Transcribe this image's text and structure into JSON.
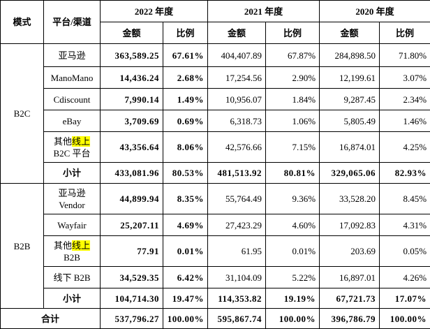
{
  "header": {
    "mode": "模式",
    "platform": "平台/渠道",
    "years": [
      "2022 年度",
      "2021 年度",
      "2020 年度"
    ],
    "subheaders": [
      "金额",
      "比例",
      "金额",
      "比例",
      "金额",
      "比例"
    ]
  },
  "groups": [
    {
      "mode": "B2C",
      "rows": [
        {
          "platform": [
            [
              {
                "text": "亚马逊"
              }
            ]
          ],
          "values": [
            "363,589.25",
            "67.61%",
            "404,407.89",
            "67.87%",
            "284,898.50",
            "71.80%"
          ]
        },
        {
          "platform": [
            [
              {
                "text": "ManoMano"
              }
            ]
          ],
          "values": [
            "14,436.24",
            "2.68%",
            "17,254.56",
            "2.90%",
            "12,199.61",
            "3.07%"
          ]
        },
        {
          "platform": [
            [
              {
                "text": "Cdiscount"
              }
            ]
          ],
          "values": [
            "7,990.14",
            "1.49%",
            "10,956.07",
            "1.84%",
            "9,287.45",
            "2.34%"
          ]
        },
        {
          "platform": [
            [
              {
                "text": "eBay"
              }
            ]
          ],
          "values": [
            "3,709.69",
            "0.69%",
            "6,318.73",
            "1.06%",
            "5,805.49",
            "1.46%"
          ]
        },
        {
          "platform": [
            [
              {
                "text": "其他"
              },
              {
                "text": "线上",
                "highlight": true
              }
            ],
            [
              {
                "text": "B2C 平台"
              }
            ]
          ],
          "values": [
            "43,356.64",
            "8.06%",
            "42,576.66",
            "7.15%",
            "16,874.01",
            "4.25%"
          ]
        },
        {
          "platform": [
            [
              {
                "text": "小计"
              }
            ]
          ],
          "subtotal": true,
          "values": [
            "433,081.96",
            "80.53%",
            "481,513.92",
            "80.81%",
            "329,065.06",
            "82.93%"
          ]
        }
      ]
    },
    {
      "mode": "B2B",
      "rows": [
        {
          "platform": [
            [
              {
                "text": "亚马逊"
              }
            ],
            [
              {
                "text": "Vendor"
              }
            ]
          ],
          "values": [
            "44,899.94",
            "8.35%",
            "55,764.49",
            "9.36%",
            "33,528.20",
            "8.45%"
          ]
        },
        {
          "platform": [
            [
              {
                "text": "Wayfair"
              }
            ]
          ],
          "values": [
            "25,207.11",
            "4.69%",
            "27,423.29",
            "4.60%",
            "17,092.83",
            "4.31%"
          ]
        },
        {
          "platform": [
            [
              {
                "text": "其他"
              },
              {
                "text": "线上",
                "highlight": true
              }
            ],
            [
              {
                "text": "B2B"
              }
            ]
          ],
          "values": [
            "77.91",
            "0.01%",
            "61.95",
            "0.01%",
            "203.69",
            "0.05%"
          ]
        },
        {
          "platform": [
            [
              {
                "text": "线下 B2B"
              }
            ]
          ],
          "values": [
            "34,529.35",
            "6.42%",
            "31,104.09",
            "5.22%",
            "16,897.01",
            "4.26%"
          ]
        },
        {
          "platform": [
            [
              {
                "text": "小计"
              }
            ]
          ],
          "subtotal": true,
          "values": [
            "104,714.30",
            "19.47%",
            "114,353.82",
            "19.19%",
            "67,721.73",
            "17.07%"
          ]
        }
      ]
    }
  ],
  "total": {
    "label": "合计",
    "values": [
      "537,796.27",
      "100.00%",
      "595,867.74",
      "100.00%",
      "396,786.79",
      "100.00%"
    ]
  }
}
